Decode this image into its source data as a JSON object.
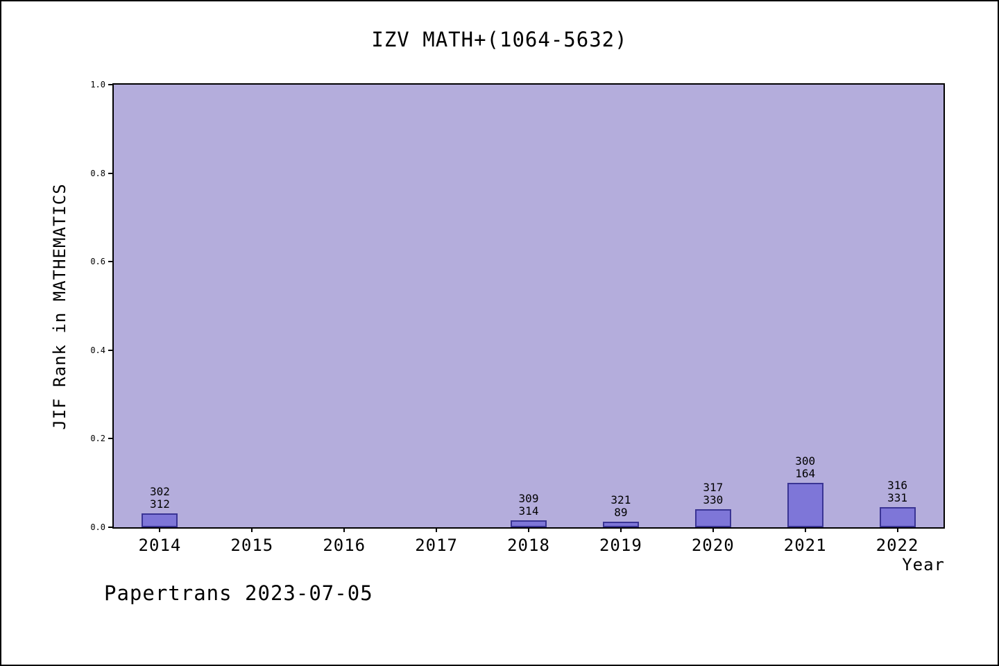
{
  "footer": "Papertrans 2023-07-05",
  "chart_data": {
    "type": "bar",
    "title": "IZV MATH+(1064-5632)",
    "xlabel": "Year",
    "ylabel": "JIF Rank in MATHEMATICS",
    "categories": [
      "2014",
      "2015",
      "2016",
      "2017",
      "2018",
      "2019",
      "2020",
      "2021",
      "2022"
    ],
    "values": [
      0.032,
      0,
      0,
      0,
      0.016,
      0.013,
      0.04,
      0.1,
      0.045
    ],
    "bar_labels": [
      [
        "302",
        "312"
      ],
      null,
      null,
      null,
      [
        "309",
        "314"
      ],
      [
        "321",
        "89"
      ],
      [
        "317",
        "330"
      ],
      [
        "300",
        "164"
      ],
      [
        "316",
        "331"
      ]
    ],
    "ylim": [
      0,
      1.0
    ],
    "yticks": [
      "0.0",
      "0.2",
      "0.4",
      "0.6",
      "0.8",
      "1.0"
    ],
    "grid": false,
    "legend": null,
    "colors": {
      "plot_bg": "#b4addc",
      "bar_fill": "#7e76d8",
      "bar_border": "#3a3494",
      "axis": "#000000"
    }
  }
}
